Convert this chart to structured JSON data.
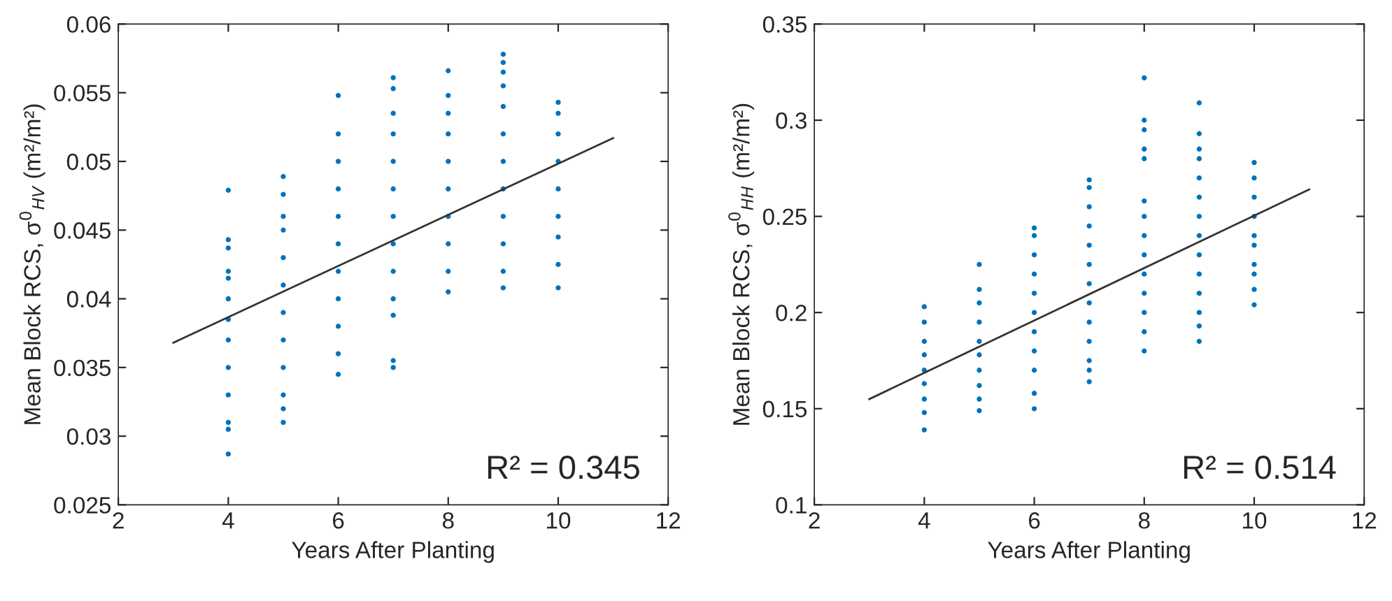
{
  "chart_data": [
    {
      "type": "scatter",
      "xlabel": "Years After Planting",
      "ylabel": "Mean Block RCS, σ$^{0}$$_{HV}$ (m²/m²)",
      "xlim": [
        2,
        12
      ],
      "xticks": [
        2,
        4,
        6,
        8,
        10,
        12
      ],
      "ylim": [
        0.025,
        0.06
      ],
      "yticks": [
        0.025,
        0.03,
        0.035,
        0.04,
        0.045,
        0.05,
        0.055,
        0.06
      ],
      "grid": false,
      "legend": false,
      "annotations": [
        "R² = 0.345"
      ],
      "series": [
        {
          "marker": "circle",
          "color": "#0072bd",
          "x": [
            4,
            4,
            4,
            4,
            4,
            4,
            4,
            4,
            4,
            4,
            4,
            4,
            4,
            5,
            5,
            5,
            5,
            5,
            5,
            5,
            5,
            5,
            5,
            5,
            5,
            6,
            6,
            6,
            6,
            6,
            6,
            6,
            6,
            6,
            6,
            6,
            7,
            7,
            7,
            7,
            7,
            7,
            7,
            7,
            7,
            7,
            7,
            7,
            7,
            8,
            8,
            8,
            8,
            8,
            8,
            8,
            8,
            8,
            8,
            9,
            9,
            9,
            9,
            9,
            9,
            9,
            9,
            9,
            9,
            9,
            9,
            10,
            10,
            10,
            10,
            10,
            10,
            10,
            10,
            10
          ],
          "values": [
            0.0479,
            0.0443,
            0.0437,
            0.042,
            0.0415,
            0.04,
            0.0385,
            0.037,
            0.035,
            0.033,
            0.031,
            0.0305,
            0.0287,
            0.0489,
            0.0476,
            0.046,
            0.045,
            0.043,
            0.041,
            0.039,
            0.037,
            0.035,
            0.033,
            0.032,
            0.031,
            0.0548,
            0.052,
            0.05,
            0.048,
            0.046,
            0.044,
            0.042,
            0.04,
            0.038,
            0.036,
            0.0345,
            0.0561,
            0.0553,
            0.0535,
            0.052,
            0.05,
            0.048,
            0.046,
            0.044,
            0.042,
            0.04,
            0.0388,
            0.0355,
            0.035,
            0.0566,
            0.0548,
            0.0535,
            0.052,
            0.05,
            0.048,
            0.046,
            0.044,
            0.042,
            0.0405,
            0.0578,
            0.0572,
            0.0565,
            0.0555,
            0.054,
            0.052,
            0.05,
            0.048,
            0.046,
            0.044,
            0.042,
            0.0408,
            0.0543,
            0.0535,
            0.052,
            0.05,
            0.048,
            0.046,
            0.0445,
            0.0425,
            0.0408
          ]
        },
        {
          "type": "line",
          "marker": "none",
          "color": "#333333",
          "x": [
            3,
            11
          ],
          "values": [
            0.0368,
            0.0517
          ]
        }
      ]
    },
    {
      "type": "scatter",
      "xlabel": "Years After Planting",
      "ylabel": "Mean Block RCS, σ$^{0}$$_{HH}$ (m²/m²)",
      "xlim": [
        2,
        12
      ],
      "xticks": [
        2,
        4,
        6,
        8,
        10,
        12
      ],
      "ylim": [
        0.1,
        0.35
      ],
      "yticks": [
        0.1,
        0.15,
        0.2,
        0.25,
        0.3,
        0.35
      ],
      "grid": false,
      "legend": false,
      "annotations": [
        "R² = 0.514"
      ],
      "series": [
        {
          "marker": "circle",
          "color": "#0072bd",
          "x": [
            4,
            4,
            4,
            4,
            4,
            4,
            4,
            4,
            4,
            5,
            5,
            5,
            5,
            5,
            5,
            5,
            5,
            5,
            5,
            6,
            6,
            6,
            6,
            6,
            6,
            6,
            6,
            6,
            6,
            6,
            7,
            7,
            7,
            7,
            7,
            7,
            7,
            7,
            7,
            7,
            7,
            7,
            7,
            8,
            8,
            8,
            8,
            8,
            8,
            8,
            8,
            8,
            8,
            8,
            8,
            8,
            8,
            9,
            9,
            9,
            9,
            9,
            9,
            9,
            9,
            9,
            9,
            9,
            9,
            9,
            9,
            10,
            10,
            10,
            10,
            10,
            10,
            10,
            10,
            10,
            10
          ],
          "values": [
            0.203,
            0.195,
            0.185,
            0.178,
            0.17,
            0.163,
            0.155,
            0.148,
            0.139,
            0.225,
            0.212,
            0.205,
            0.195,
            0.185,
            0.178,
            0.17,
            0.162,
            0.155,
            0.149,
            0.244,
            0.24,
            0.23,
            0.22,
            0.21,
            0.2,
            0.19,
            0.18,
            0.17,
            0.158,
            0.15,
            0.269,
            0.265,
            0.255,
            0.245,
            0.235,
            0.225,
            0.215,
            0.205,
            0.195,
            0.185,
            0.175,
            0.17,
            0.164,
            0.322,
            0.3,
            0.295,
            0.285,
            0.28,
            0.258,
            0.25,
            0.24,
            0.23,
            0.22,
            0.21,
            0.2,
            0.19,
            0.18,
            0.309,
            0.293,
            0.285,
            0.28,
            0.27,
            0.26,
            0.25,
            0.24,
            0.23,
            0.22,
            0.21,
            0.2,
            0.193,
            0.185,
            0.278,
            0.27,
            0.26,
            0.25,
            0.24,
            0.235,
            0.225,
            0.22,
            0.212,
            0.204
          ]
        },
        {
          "type": "line",
          "marker": "none",
          "color": "#333333",
          "x": [
            3,
            11
          ],
          "values": [
            0.155,
            0.264
          ]
        }
      ]
    }
  ]
}
